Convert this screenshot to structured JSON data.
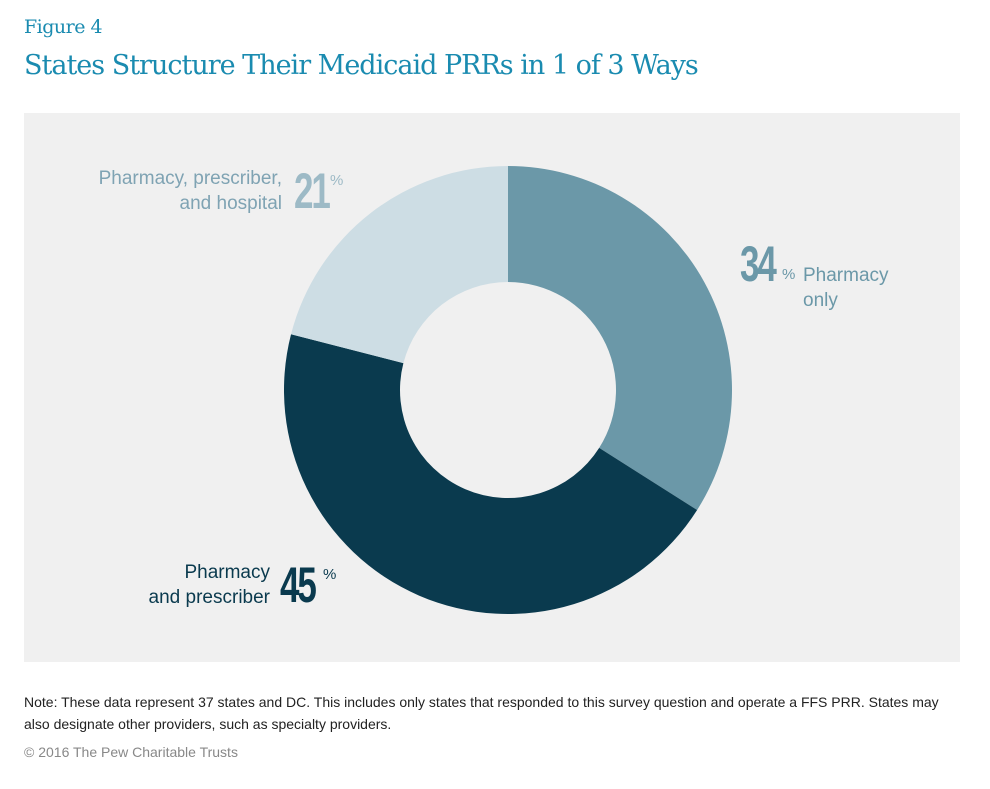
{
  "figure_label": "Figure 4",
  "title": "States Structure Their Medicaid PRRs in 1 of 3 Ways",
  "chart_data": {
    "type": "pie",
    "donut": true,
    "start": "top, clockwise",
    "slices": [
      {
        "label_line1": "Pharmacy",
        "label_line2": "only",
        "value": 34,
        "value_text": "34",
        "color": "#6b98a8"
      },
      {
        "label_line1": "Pharmacy",
        "label_line2": "and prescriber",
        "value": 45,
        "value_text": "45",
        "color": "#0a3a4e"
      },
      {
        "label_line1": "Pharmacy, prescriber,",
        "label_line2": "and hospital",
        "value": 21,
        "value_text": "21",
        "color": "#cddde4"
      }
    ],
    "unit": "%"
  },
  "note": "Note: These data represent 37 states and DC. This includes only states that responded to this survey question and operate a FFS PRR. States may also designate other providers, such as specialty providers.",
  "copyright": "© 2016 The Pew Charitable Trusts"
}
